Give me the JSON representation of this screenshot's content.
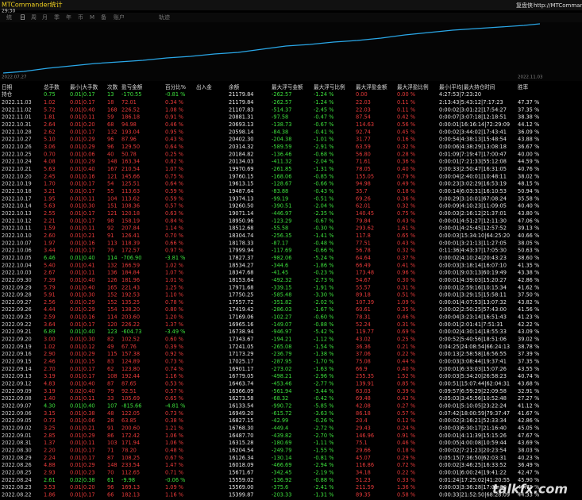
{
  "header": {
    "title": "MTCommander统计",
    "clock": "29:30",
    "brand": "复盘侠",
    "url": "http://MTCommander.com"
  },
  "toolbar": [
    "统",
    "日",
    "周",
    "月",
    "季",
    "年",
    "币",
    "M",
    "备",
    "账户",
    "轨迹"
  ],
  "equity_chart": {
    "start": "2022.07.27",
    "end": "2022.11.03"
  },
  "table": {
    "columns": [
      "日期",
      "总手数",
      "最小|大手数",
      "次数",
      "盈亏金额",
      "百分比%",
      "出入金",
      "余额",
      "最大浮亏金额",
      "最大浮亏比例",
      "最大浮盈金额",
      "最大浮盈比例",
      "最小|平均|最大持仓时间",
      "胜率"
    ],
    "position": {
      "label": "持仓",
      "cells": [
        "0.75",
        "0.01|0.17",
        "13",
        "-170.55",
        "-0.81 %",
        "21179.84",
        "-262.57",
        "-1.24 %",
        "0.00",
        "0.00 %",
        "4:27:53|7:23:20"
      ]
    },
    "rows": [
      [
        "2022.11.03",
        "1.02",
        "0.01|0.17",
        "18",
        "72.01",
        "0.34 %",
        "21179.84",
        "-262.57",
        "-1.24 %",
        "22.03",
        "0.11 %",
        "2:13:43|5:43:12|7:17:23",
        "47.37 %"
      ],
      [
        "2022.11.02",
        "5.72",
        "0.01|0.40",
        "168",
        "226.52",
        "1.08 %",
        "21107.83",
        "-514.37",
        "-2.45 %",
        "22.03",
        "0.11 %",
        "0:00:02|3:01:22|17:54:27",
        "37.35 %"
      ],
      [
        "2022.11.01",
        "1.81",
        "0.01|0.11",
        "59",
        "186.18",
        "0.91 %",
        "20881.31",
        "-97.58",
        "-0.47 %",
        "87.54",
        "0.42 %",
        "0:00:07|3:07:18|12:18:51",
        "38.38 %"
      ],
      [
        "2022.10.31",
        "2.64",
        "0.01|0.20",
        "68",
        "94.98",
        "0.46 %",
        "20693.13",
        "-138.73",
        "-0.67 %",
        "114.63",
        "0.56 %",
        "0:00:01|16:16:14|72:29:09",
        "44.12 %"
      ],
      [
        "2022.10.28",
        "2.62",
        "0.01|0.17",
        "132",
        "193.04",
        "0.95 %",
        "20598.14",
        "-84.38",
        "-0.41 %",
        "92.74",
        "0.45 %",
        "0:00:02|3:44:02|17:43:41",
        "36.09 %"
      ],
      [
        "2022.10.27",
        "5.10",
        "0.01|0.29",
        "96",
        "87.96",
        "0.43 %",
        "20402.30",
        "-204.38",
        "-1.01 %",
        "31.77",
        "0.16 %",
        "0:00:54|4:38:13|15:48:54",
        "43.88 %"
      ],
      [
        "2022.10.26",
        "3.06",
        "0.01|0.29",
        "96",
        "129.50",
        "0.64 %",
        "20314.32",
        "-589.59",
        "-2.91 %",
        "63.59",
        "0.32 %",
        "0:00:06|4:38:29|13:08:18",
        "36.67 %"
      ],
      [
        "2022.10.25",
        "0.70",
        "0.01|0.06",
        "40",
        "50.78",
        "0.25 %",
        "20184.82",
        "-136.46",
        "-0.68 %",
        "56.80",
        "0.28 %",
        "0:01:09|7:19:47|17:00:47",
        "40.00 %"
      ],
      [
        "2022.10.24",
        "4.08",
        "0.01|0.29",
        "148",
        "163.34",
        "0.82 %",
        "20134.03",
        "-411.32",
        "-2.04 %",
        "71.61",
        "0.36 %",
        "0:00:01|7:21:33|55:12:08",
        "44.59 %"
      ],
      [
        "2022.10.21",
        "5.63",
        "0.01|0.40",
        "167",
        "210.54",
        "1.07 %",
        "19970.69",
        "-261.85",
        "-1.31 %",
        "78.05",
        "0.40 %",
        "0:00:33|2:50:47|16:31:05",
        "40.76 %"
      ],
      [
        "2022.10.20",
        "2.45",
        "0.01|0.16",
        "121",
        "145.66",
        "0.75 %",
        "19760.15",
        "-168.06",
        "-0.85 %",
        "155.05",
        "0.79 %",
        "0:00:04|2:40:01|10:48:11",
        "38.02 %"
      ],
      [
        "2022.10.19",
        "1.70",
        "0.01|0.17",
        "54",
        "125.51",
        "0.64 %",
        "19613.15",
        "-128.67",
        "-0.66 %",
        "94.98",
        "0.49 %",
        "0:00:23|3:02:29|16:53:19",
        "48.15 %"
      ],
      [
        "2022.10.18",
        "3.21",
        "0.01|0.17",
        "55",
        "113.63",
        "0.59 %",
        "19487.64",
        "-83.88",
        "-0.43 %",
        "35.7",
        "0.18 %",
        "0:00:14|6:03:31|16:10:53",
        "50.94 %"
      ],
      [
        "2022.10.17",
        "1.95",
        "0.01|0.11",
        "104",
        "113.62",
        "0.59 %",
        "19374.13",
        "-99.19",
        "-0.51 %",
        "69.26",
        "0.36 %",
        "0:00:29|3:10:01|67:08:24",
        "35.58 %"
      ],
      [
        "2022.10.14",
        "5.63",
        "0.01|0.30",
        "151",
        "108.36",
        "0.57 %",
        "19260.50",
        "-390.51",
        "-2.04 %",
        "62.01",
        "0.32 %",
        "0:00:09|4:10:23|11:09:05",
        "40.40 %"
      ],
      [
        "2022.10.13",
        "2.55",
        "0.01|0.17",
        "121",
        "120.18",
        "0.63 %",
        "19071.14",
        "-446.97",
        "-2.35 %",
        "140.45",
        "0.75 %",
        "0:00:03|2:16:12|21:37:01",
        "43.80 %"
      ],
      [
        "2022.10.12",
        "2.21",
        "0.01|0.17",
        "98",
        "158.19",
        "0.84 %",
        "18950.96",
        "-123.29",
        "-0.67 %",
        "79.84",
        "0.43 %",
        "0:00:01|4:51:27|12:11:30",
        "47.06 %"
      ],
      [
        "2022.10.11",
        "1.59",
        "0.01|0.11",
        "92",
        "207.84",
        "1.14 %",
        "18512.68",
        "-55.58",
        "-0.30 %",
        "293.62",
        "1.61 %",
        "0:00:01|4:25:45|12:57:52",
        "39.13 %"
      ],
      [
        "2022.10.10",
        "2.60",
        "0.01|0.21",
        "91",
        "126.41",
        "0.70 %",
        "18304.74",
        "-256.35",
        "-1.41 %",
        "117.8",
        "0.65 %",
        "0:00:03|15:34:10|64:25:20",
        "40.66 %"
      ],
      [
        "2022.10.07",
        "1.97",
        "0.01|0.16",
        "113",
        "118.39",
        "0.66 %",
        "18178.33",
        "-87.17",
        "-0.48 %",
        "77.51",
        "0.43 %",
        "0:00:01|3:21:13|11:27:05",
        "38.05 %"
      ],
      [
        "2022.10.06",
        "3.44",
        "0.01|0.17",
        "79",
        "172.57",
        "0.97 %",
        "17999.94",
        "-117.69",
        "-0.66 %",
        "56.78",
        "0.32 %",
        "0:11:36|4:43:37|17:05:30",
        "50.63 %"
      ],
      [
        "2022.10.05",
        "6.46",
        "0.01|0.40",
        "114",
        "-706.90",
        "-3.81 %",
        "17827.37",
        "-982.06",
        "-5.24 %",
        "64.64",
        "0.37 %",
        "0:00:02|4:10:24|20:43:23",
        "38.60 %"
      ],
      [
        "2022.10.04",
        "5.40",
        "0.01|0.41",
        "132",
        "166.59",
        "1.02 %",
        "18534.27",
        "-344.6",
        "-1.86 %",
        "66.49",
        "0.41 %",
        "0:00:03|3:18:14|16:07:10",
        "41.35 %"
      ],
      [
        "2022.10.03",
        "2.67",
        "0.01|0.11",
        "136",
        "184.84",
        "1.07 %",
        "18347.68",
        "-41.45",
        "-0.23 %",
        "173.48",
        "0.96 %",
        "0:00:01|9:03:13|60:19:49",
        "43.38 %"
      ],
      [
        "2022.09.30",
        "7.39",
        "0.01|0.40",
        "126",
        "181.96",
        "1.01 %",
        "18153.64",
        "-492.32",
        "-2.73 %",
        "54.67",
        "0.30 %",
        "0:00:01|4:39:03|15:20:27",
        "42.86 %"
      ],
      [
        "2022.09.29",
        "5.79",
        "0.01|0.40",
        "165",
        "221.43",
        "1.25 %",
        "17971.68",
        "-339.15",
        "-1.91 %",
        "55.57",
        "0.31 %",
        "0:00:01|2:59:16|10:15:34",
        "41.62 %"
      ],
      [
        "2022.09.28",
        "5.91",
        "0.01|0.30",
        "152",
        "192.53",
        "1.10 %",
        "17750.25",
        "-585.48",
        "-3.30 %",
        "89.18",
        "0.51 %",
        "0:00:01|3:29:15|15:58:11",
        "37.50 %"
      ],
      [
        "2022.09.27",
        "2.56",
        "0.01|0.29",
        "152",
        "135.25",
        "0.78 %",
        "17557.72",
        "-351.82",
        "-2.02 %",
        "107.39",
        "1.09 %",
        "0:00:01|4:07:53|13:07:32",
        "43.82 %"
      ],
      [
        "2022.09.26",
        "4.44",
        "0.01|0.29",
        "154",
        "138.20",
        "0.80 %",
        "17419.42",
        "-286.03",
        "-1.67 %",
        "60.61",
        "0.35 %",
        "0:00:02|2:50:25|57:43:00",
        "41.56 %"
      ],
      [
        "2022.09.23",
        "2.59",
        "0.01|0.16",
        "114",
        "203.60",
        "1.20 %",
        "17169.06",
        "-102.27",
        "-0.60 %",
        "78.31",
        "0.46 %",
        "0:00:04|3:23:14|16:51:43",
        "41.23 %"
      ],
      [
        "2022.09.22",
        "3.64",
        "0.01|0.17",
        "120",
        "226.22",
        "1.37 %",
        "16965.16",
        "-149.07",
        "-0.88 %",
        "52.24",
        "0.31 %",
        "0:00:01|2:01:41|7:51:31",
        "42.22 %"
      ],
      [
        "2022.09.21",
        "6.89",
        "0.01|0.40",
        "123",
        "-604.73",
        "-3.49 %",
        "16738.94",
        "-946.97",
        "-5.42 %",
        "119.77",
        "0.69 %",
        "0:00:02|4:30:14|18:55:33",
        "43.09 %"
      ],
      [
        "2022.09.20",
        "3.00",
        "0.01|0.30",
        "82",
        "102.52",
        "0.60 %",
        "17343.67",
        "-194.21",
        "-1.12 %",
        "43.02",
        "0.25 %",
        "0:00:52|5:40:56|18:51:06",
        "39.02 %"
      ],
      [
        "2022.09.19",
        "1.02",
        "0.01|0.12",
        "49",
        "67.76",
        "0.39 %",
        "17241.05",
        "-265.08",
        "-1.54 %",
        "36.36",
        "0.21 %",
        "0:04:25|24:08:54|66:24:13",
        "38.78 %"
      ],
      [
        "2022.09.16",
        "2.90",
        "0.01|0.29",
        "115",
        "157.38",
        "0.92 %",
        "17173.29",
        "-236.79",
        "-1.38 %",
        "37.06",
        "0.22 %",
        "0:00:13|2:58:58|16:56:55",
        "37.39 %"
      ],
      [
        "2022.09.15",
        "2.46",
        "0.01|0.15",
        "83",
        "124.89",
        "0.73 %",
        "17025.17",
        "-287.95",
        "-1.70 %",
        "75.08",
        "0.44 %",
        "0:00:03|3:08:44|19:37:41",
        "37.35 %"
      ],
      [
        "2022.09.14",
        "2.70",
        "0.01|0.17",
        "62",
        "123.80",
        "0.74 %",
        "16901.17",
        "-273.02",
        "-1.63 %",
        "66.9",
        "0.40 %",
        "0:00:01|6:33:03|15:07:26",
        "43.55 %"
      ],
      [
        "2022.09.13",
        "3.19",
        "0.01|0.17",
        "108",
        "192.44",
        "1.16 %",
        "16779.05",
        "-498.21",
        "-2.96 %",
        "255.35",
        "1.52 %",
        "0:00:03|5:34:20|26:58:23",
        "40.74 %"
      ],
      [
        "2022.09.12",
        "4.83",
        "0.01|0.40",
        "87",
        "87.65",
        "0.53 %",
        "16463.74",
        "-453.46",
        "-2.77 %",
        "139.91",
        "0.85 %",
        "0:00:51|15:07:44|62:04:31",
        "43.68 %"
      ],
      [
        "2022.09.09",
        "3.19",
        "0.02|0.40",
        "79",
        "92.51",
        "0.57 %",
        "16366.09",
        "-561.94",
        "-3.44 %",
        "63.03",
        "0.39 %",
        "0:09:57|6:59:29|22:09:58",
        "32.91 %"
      ],
      [
        "2022.09.08",
        "1.40",
        "0.01|0.11",
        "33",
        "105.69",
        "0.65 %",
        "16273.58",
        "-68.32",
        "-0.42 %",
        "69.48",
        "0.43 %",
        "0:05:03|3:45:56|10:52:48",
        "27.27 %"
      ],
      [
        "2022.09.07",
        "4.30",
        "0.01|0.40",
        "107",
        "-815.66",
        "-4.81 %",
        "16133.54",
        "-990.72",
        "-5.85 %",
        "42.08",
        "0.27 %",
        "0:00:01|5:10:05|23:22:24",
        "41.12 %"
      ],
      [
        "2022.09.06",
        "3.15",
        "0.01|0.38",
        "48",
        "122.05",
        "0.73 %",
        "16949.20",
        "-615.72",
        "-3.63 %",
        "86.18",
        "0.57 %",
        "0:07:42|18:00:59|79:37:47",
        "41.67 %"
      ],
      [
        "2022.09.05",
        "0.73",
        "0.01|0.06",
        "28",
        "63.85",
        "0.38 %",
        "16827.15",
        "-42.99",
        "-0.26 %",
        "20.4",
        "0.12 %",
        "0:00:02|3:16:21|52:33:34",
        "42.86 %"
      ],
      [
        "2022.09.02",
        "3.25",
        "0.01|0.21",
        "91",
        "200.60",
        "1.21 %",
        "16768.30",
        "-449.4",
        "-2.72 %",
        "29.43",
        "0.24 %",
        "0:00:03|6:30:17|21:16:40",
        "45.05 %"
      ],
      [
        "2022.09.01",
        "2.85",
        "0.01|0.29",
        "86",
        "172.42",
        "1.06 %",
        "16487.70",
        "-439.82",
        "-2.70 %",
        "146.96",
        "0.91 %",
        "0:00:01|4:11:39|15:15:26",
        "47.67 %"
      ],
      [
        "2022.08.31",
        "1.37",
        "0.01|0.11",
        "103",
        "171.94",
        "1.06 %",
        "16315.28",
        "-180.69",
        "-1.11 %",
        "75.1",
        "0.46 %",
        "0:00:05|4:00:08|10:59:44",
        "43.69 %"
      ],
      [
        "2022.08.30",
        "2.20",
        "0.01|0.17",
        "71",
        "78.20",
        "0.48 %",
        "16204.54",
        "-249.79",
        "-1.55 %",
        "29.66",
        "0.18 %",
        "0:00:02|7:21:23|20:23:54",
        "38.03 %"
      ],
      [
        "2022.08.29",
        "2.24",
        "0.01|0.17",
        "87",
        "108.25",
        "0.67 %",
        "16126.34",
        "-130.14",
        "-0.81 %",
        "45.07",
        "0.29 %",
        "0:05:15|7:36:50|62:03:31",
        "40.23 %"
      ],
      [
        "2022.08.26",
        "4.88",
        "0.01|0.29",
        "148",
        "233.54",
        "1.47 %",
        "16018.09",
        "-466.69",
        "-2.94 %",
        "116.86",
        "0.72 %",
        "0:00:02|3:46:25|16:33:52",
        "36.49 %"
      ],
      [
        "2022.08.25",
        "2.93",
        "0.01|0.23",
        "70",
        "112.65",
        "0.71 %",
        "15671.67",
        "-342.45",
        "-2.19 %",
        "34.18",
        "0.22 %",
        "0:00:01|6:00:24|19:41:22",
        "42.47 %"
      ],
      [
        "2022.08.24",
        "2.61",
        "0.02|0.38",
        "61",
        "-9.98",
        "-0.06 %",
        "15559.02",
        "-136.92",
        "-0.88 %",
        "51.23",
        "0.33 %",
        "0:01:24|17:25:02|41:20:55",
        "45.90 %"
      ],
      [
        "2022.08.23",
        "3.53",
        "0.01|0.20",
        "96",
        "169.13",
        "1.09 %",
        "15569.00",
        "-375.6",
        "-2.41 %",
        "211.59",
        "1.36 %",
        "0:00:03|3:36:28|17:01:30",
        "43.75 %"
      ],
      [
        "2022.08.22",
        "1.86",
        "0.01|0.17",
        "66",
        "182.13",
        "1.16 %",
        "15399.87",
        "-203.33",
        "-1.31 %",
        "89.35",
        "0.58 %",
        "0:00:33|21:52:50|68:28:09",
        "44.33 %"
      ]
    ]
  },
  "watermark": "talkfx.com"
}
